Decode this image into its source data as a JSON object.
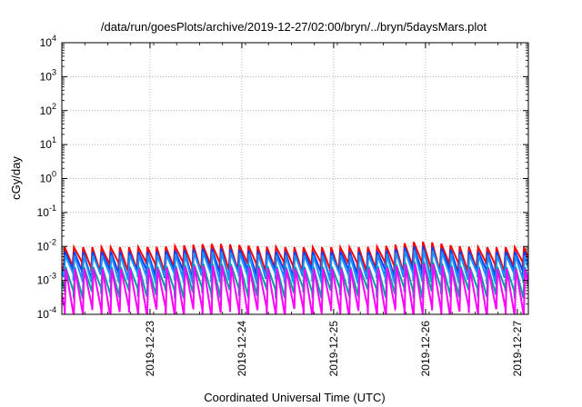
{
  "chart_data": {
    "type": "line",
    "title": "/data/run/goesPlots/archive/2019-12-27/02:00/bryn/../bryn/5daysMars.plot",
    "xlabel": "Coordinated Universal Time (UTC)",
    "ylabel": "cGy/day",
    "yscale": "log",
    "ylim": [
      0.0001,
      10000
    ],
    "y_ticks": [
      {
        "base": "10",
        "exp": "-4"
      },
      {
        "base": "10",
        "exp": "-3"
      },
      {
        "base": "10",
        "exp": "-2"
      },
      {
        "base": "10",
        "exp": "-1"
      },
      {
        "base": "10",
        "exp": "0"
      },
      {
        "base": "10",
        "exp": "1"
      },
      {
        "base": "10",
        "exp": "2"
      },
      {
        "base": "10",
        "exp": "3"
      },
      {
        "base": "10",
        "exp": "4"
      }
    ],
    "x_range_days": [
      0,
      5.08
    ],
    "x_ticks": [
      {
        "label": "2019-12-23",
        "day": 0.96
      },
      {
        "label": "2019-12-24",
        "day": 1.96
      },
      {
        "label": "2019-12-25",
        "day": 2.96
      },
      {
        "label": "2019-12-26",
        "day": 3.96
      },
      {
        "label": "2019-12-27",
        "day": 4.96
      }
    ],
    "grid": true,
    "legend": "none",
    "sawtooth_period_days": 0.1,
    "series": [
      {
        "color": "#ff0000",
        "peak": 0.0095,
        "trough": 0.0026
      },
      {
        "color": "#0044ff",
        "peak": 0.007,
        "trough": 0.0016
      },
      {
        "color": "#1e90ff",
        "peak": 0.0055,
        "trough": 0.0012
      },
      {
        "color": "#00a0a0",
        "peak": 0.0025,
        "trough": 0.00045
      },
      {
        "color": "#ff00ff",
        "peak": 0.0022,
        "trough": 0.00012
      }
    ]
  }
}
